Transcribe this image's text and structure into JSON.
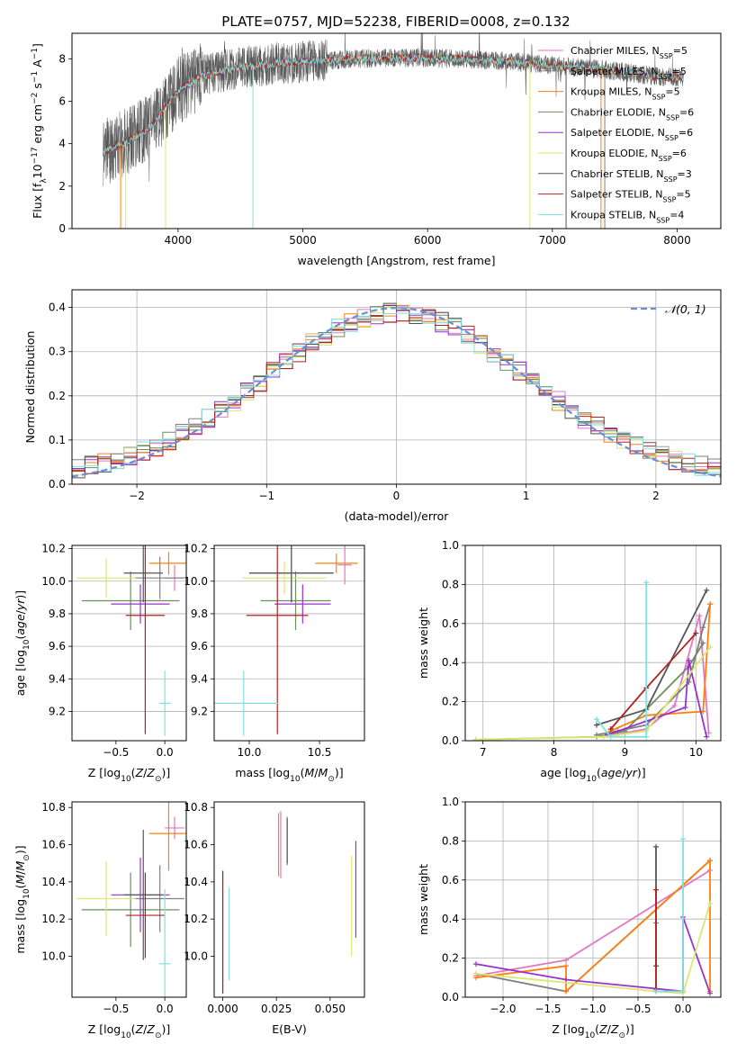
{
  "title": "PLATE=0757, MJD=52238, FIBERID=0008, z=0.132",
  "models": [
    {
      "label": "Chabrier MILES, N",
      "nssp": "5",
      "color": "#e377c2"
    },
    {
      "label": "Salpeter MILES, N",
      "nssp": "5",
      "color": "#7f7f7f"
    },
    {
      "label": "Kroupa MILES, N",
      "nssp": "5",
      "color": "#ff7f0e"
    },
    {
      "label": "Chabrier ELODIE, N",
      "nssp": "6",
      "color": "#6b8e5e"
    },
    {
      "label": "Salpeter ELODIE, N",
      "nssp": "6",
      "color": "#9932cc"
    },
    {
      "label": "Kroupa ELODIE, N",
      "nssp": "6",
      "color": "#dbe76e"
    },
    {
      "label": "Chabrier STELIB, N",
      "nssp": "3",
      "color": "#555555"
    },
    {
      "label": "Salpeter STELIB, N",
      "nssp": "5",
      "color": "#b22222"
    },
    {
      "label": "Kroupa STELIB, N",
      "nssp": "4",
      "color": "#80dfe0"
    }
  ],
  "nssp_sub": "SSP",
  "chart_data": [
    {
      "id": "spectrum",
      "type": "line",
      "xlabel": "wavelength [Angstrom, rest frame]",
      "ylabel": "Flux [f",
      "xlim": [
        3150,
        8350
      ],
      "ylim": [
        0,
        9.2
      ],
      "xticks": [
        4000,
        5000,
        6000,
        7000,
        8000
      ],
      "yticks": [
        0,
        2,
        4,
        6,
        8
      ],
      "continuum": {
        "x": [
          3400,
          3600,
          3800,
          4000,
          4200,
          4500,
          4800,
          5100,
          5400,
          5800,
          6200,
          6600,
          7000,
          7400,
          7800,
          8050
        ],
        "y": [
          3.6,
          4.1,
          4.9,
          6.5,
          7.2,
          7.6,
          7.8,
          7.9,
          8.0,
          8.05,
          8.0,
          7.9,
          7.7,
          7.5,
          7.2,
          7.1
        ]
      },
      "legend": "top-right"
    },
    {
      "id": "residuals",
      "type": "histogram",
      "xlabel": "(data-model)/error",
      "ylabel": "Normed distribution",
      "xlim": [
        -2.5,
        2.5
      ],
      "ylim": [
        0,
        0.44
      ],
      "xticks": [
        -2,
        -1,
        0,
        1,
        2
      ],
      "yticks": [
        0.0,
        0.1,
        0.2,
        0.3,
        0.4
      ],
      "reference": "𝒩(0, 1)",
      "bin_width": 0.1,
      "legend": "top-right"
    },
    {
      "id": "age_vs_Z",
      "type": "errorbar",
      "xlabel": "Z [log",
      "ylabel": "age  [log",
      "xlim": [
        -0.95,
        0.22
      ],
      "ylim": [
        9.02,
        10.22
      ],
      "xticks": [
        -0.5,
        0.0
      ],
      "yticks": [
        9.2,
        9.4,
        9.6,
        9.8,
        10.0,
        10.2
      ],
      "points": [
        {
          "x": 0.1,
          "y": 10.02,
          "xerr": 0.1,
          "yerr": 0.08
        },
        {
          "x": -0.05,
          "y": 10.02,
          "xerr": 0.25,
          "yerr": 0.13
        },
        {
          "x": 0.04,
          "y": 10.11,
          "xerr": 0.2,
          "yerr": 0.07
        },
        {
          "x": -0.35,
          "y": 9.88,
          "xerr": 0.5,
          "yerr": 0.18
        },
        {
          "x": -0.25,
          "y": 9.86,
          "xerr": 0.3,
          "yerr": 0.12
        },
        {
          "x": -0.6,
          "y": 10.02,
          "xerr": 0.3,
          "yerr": 0.12
        },
        {
          "x": -0.22,
          "y": 10.05,
          "xerr": 0.2,
          "yerr": 0.18
        },
        {
          "x": -0.2,
          "y": 9.79,
          "xerr": 0.2,
          "yerr": 0.73
        },
        {
          "x": 0.0,
          "y": 9.25,
          "xerr": 0.06,
          "yerr": 0.2
        }
      ]
    },
    {
      "id": "age_vs_mass",
      "type": "errorbar",
      "xlabel": "mass [log",
      "ylabel": "",
      "xlim": [
        9.75,
        10.82
      ],
      "ylim": [
        9.02,
        10.22
      ],
      "xticks": [
        10.0,
        10.5
      ],
      "yticks": [
        9.2,
        9.4,
        9.6,
        9.8,
        10.0,
        10.2
      ],
      "points": [
        {
          "x": 10.68,
          "y": 10.1,
          "xerr": 0.05,
          "yerr": 0.12
        },
        {
          "x": 10.3,
          "y": 10.05,
          "xerr": 0.3,
          "yerr": 0.18
        },
        {
          "x": 10.62,
          "y": 10.11,
          "xerr": 0.15,
          "yerr": 0.06
        },
        {
          "x": 10.33,
          "y": 9.88,
          "xerr": 0.25,
          "yerr": 0.18
        },
        {
          "x": 10.38,
          "y": 9.86,
          "xerr": 0.2,
          "yerr": 0.12
        },
        {
          "x": 10.25,
          "y": 10.02,
          "xerr": 0.3,
          "yerr": 0.1
        },
        {
          "x": 10.3,
          "y": 10.05,
          "xerr": 0.3,
          "yerr": 0.18
        },
        {
          "x": 10.2,
          "y": 9.79,
          "xerr": 0.22,
          "yerr": 0.73
        },
        {
          "x": 9.96,
          "y": 9.25,
          "xerr": 0.25,
          "yerr": 0.2
        }
      ]
    },
    {
      "id": "weight_vs_age",
      "type": "line",
      "xlabel": "age  [log",
      "ylabel": "mass weight",
      "xlim": [
        6.75,
        10.35
      ],
      "ylim": [
        0,
        1.0
      ],
      "xticks": [
        7,
        8,
        9,
        10
      ],
      "yticks": [
        0.0,
        0.2,
        0.4,
        0.6,
        0.8,
        1.0
      ],
      "series": [
        {
          "x": [
            8.7,
            9.0,
            9.3,
            9.7,
            10.05,
            10.18
          ],
          "y": [
            0.02,
            0.04,
            0.06,
            0.18,
            0.64,
            0.04
          ]
        },
        {
          "x": [
            8.6,
            8.9,
            9.3,
            9.9,
            10.1,
            10.2
          ],
          "y": [
            0.03,
            0.05,
            0.08,
            0.3,
            0.58,
            0.7
          ]
        },
        {
          "x": [
            8.8,
            9.3,
            10.1,
            10.2
          ],
          "y": [
            0.05,
            0.13,
            0.15,
            0.7
          ]
        },
        {
          "x": [
            6.9,
            8.6,
            9.0,
            9.9,
            10.1
          ],
          "y": [
            0.005,
            0.02,
            0.05,
            0.38,
            0.5
          ]
        },
        {
          "x": [
            8.75,
            9.3,
            9.85,
            9.9,
            10.15
          ],
          "y": [
            0.03,
            0.1,
            0.17,
            0.41,
            0.02
          ]
        },
        {
          "x": [
            6.9,
            8.7,
            9.3,
            10.2
          ],
          "y": [
            0.005,
            0.02,
            0.05,
            0.48
          ]
        },
        {
          "x": [
            8.6,
            9.3,
            10.15
          ],
          "y": [
            0.08,
            0.16,
            0.77
          ]
        },
        {
          "x": [
            8.8,
            9.3,
            10.0
          ],
          "y": [
            0.06,
            0.27,
            0.55
          ]
        },
        {
          "x": [
            8.6,
            8.8,
            9.3,
            9.3
          ],
          "y": [
            0.11,
            0.02,
            0.02,
            0.81
          ]
        }
      ]
    },
    {
      "id": "mass_vs_Z",
      "type": "errorbar",
      "xlabel": "Z [log",
      "ylabel": "mass [log",
      "xlim": [
        -0.95,
        0.22
      ],
      "ylim": [
        9.78,
        10.83
      ],
      "xticks": [
        -0.5,
        0.0
      ],
      "yticks": [
        10.0,
        10.2,
        10.4,
        10.6,
        10.8
      ],
      "points": [
        {
          "x": 0.1,
          "y": 10.69,
          "xerr": 0.1,
          "yerr": 0.06
        },
        {
          "x": -0.05,
          "y": 10.31,
          "xerr": 0.25,
          "yerr": 0.18
        },
        {
          "x": 0.04,
          "y": 10.66,
          "xerr": 0.2,
          "yerr": 0.2
        },
        {
          "x": -0.35,
          "y": 10.25,
          "xerr": 0.5,
          "yerr": 0.2
        },
        {
          "x": -0.25,
          "y": 10.33,
          "xerr": 0.3,
          "yerr": 0.2
        },
        {
          "x": -0.6,
          "y": 10.31,
          "xerr": 0.3,
          "yerr": 0.2
        },
        {
          "x": -0.22,
          "y": 10.33,
          "xerr": 0.2,
          "yerr": 0.35
        },
        {
          "x": -0.2,
          "y": 10.22,
          "xerr": 0.2,
          "yerr": 0.23
        },
        {
          "x": 0.0,
          "y": 9.96,
          "xerr": 0.06,
          "yerr": 0.4
        }
      ]
    },
    {
      "id": "mass_vs_ebv",
      "type": "errorbar",
      "xlabel": "E(B-V)",
      "ylabel": "",
      "xlim": [
        -0.004,
        0.066
      ],
      "ylim": [
        9.78,
        10.83
      ],
      "xticks": [
        0.0,
        0.025,
        0.05
      ],
      "yticks": [
        10.0,
        10.2,
        10.4,
        10.6,
        10.8
      ],
      "xtick_labels": [
        "0.000",
        "0.025",
        "0.050"
      ],
      "points": [
        {
          "x": 0.027,
          "y": 10.6,
          "xerr": 0,
          "yerr": 0.18
        },
        {
          "x": 0.0,
          "y": 10.13,
          "xerr": 0,
          "yerr": 0.33
        },
        {
          "x": 0.026,
          "y": 10.6,
          "xerr": 0,
          "yerr": 0.17
        },
        {
          "x": 0.03,
          "y": 10.62,
          "xerr": 0,
          "yerr": 0.13
        },
        {
          "x": 0.062,
          "y": 10.36,
          "xerr": 0,
          "yerr": 0.26
        },
        {
          "x": 0.06,
          "y": 10.27,
          "xerr": 0,
          "yerr": 0.27
        },
        {
          "x": 0.03,
          "y": 10.62,
          "xerr": 0,
          "yerr": 0.12
        },
        {
          "x": 0.0,
          "y": 10.13,
          "xerr": 0,
          "yerr": 0.33
        },
        {
          "x": 0.003,
          "y": 10.12,
          "xerr": 0,
          "yerr": 0.25
        }
      ]
    },
    {
      "id": "weight_vs_Z",
      "type": "line",
      "xlabel": "Z [log",
      "ylabel": "mass weight",
      "xlim": [
        -2.42,
        0.42
      ],
      "ylim": [
        0,
        1.0
      ],
      "xticks": [
        -2.0,
        -1.5,
        -1.0,
        -0.5,
        0.0
      ],
      "yticks": [
        0.0,
        0.2,
        0.4,
        0.6,
        0.8,
        1.0
      ],
      "series": [
        {
          "x": [
            -2.3,
            -1.3,
            0.3
          ],
          "y": [
            0.11,
            0.19,
            0.65
          ]
        },
        {
          "x": [
            -2.3,
            -1.3,
            0.3
          ],
          "y": [
            0.12,
            0.03,
            0.7
          ]
        },
        {
          "x": [
            -2.3,
            -1.3,
            -1.3,
            0.3,
            0.3
          ],
          "y": [
            0.1,
            0.16,
            0.03,
            0.7,
            0.03
          ]
        },
        {
          "x": [
            -0.3,
            -0.3
          ],
          "y": [
            0.04,
            0.38
          ]
        },
        {
          "x": [
            -2.3,
            -1.3,
            0.0,
            0.0,
            0.3
          ],
          "y": [
            0.17,
            0.09,
            0.03,
            0.41,
            0.02
          ]
        },
        {
          "x": [
            -2.3,
            -0.3,
            0.0,
            0.3
          ],
          "y": [
            0.12,
            0.03,
            0.02,
            0.48
          ]
        },
        {
          "x": [
            -0.3,
            -0.3
          ],
          "y": [
            0.16,
            0.77
          ]
        },
        {
          "x": [
            -0.3,
            -0.3
          ],
          "y": [
            0.03,
            0.55
          ]
        },
        {
          "x": [
            -0.3,
            0.0,
            0.0
          ],
          "y": [
            0.03,
            0.03,
            0.81
          ]
        }
      ]
    }
  ]
}
